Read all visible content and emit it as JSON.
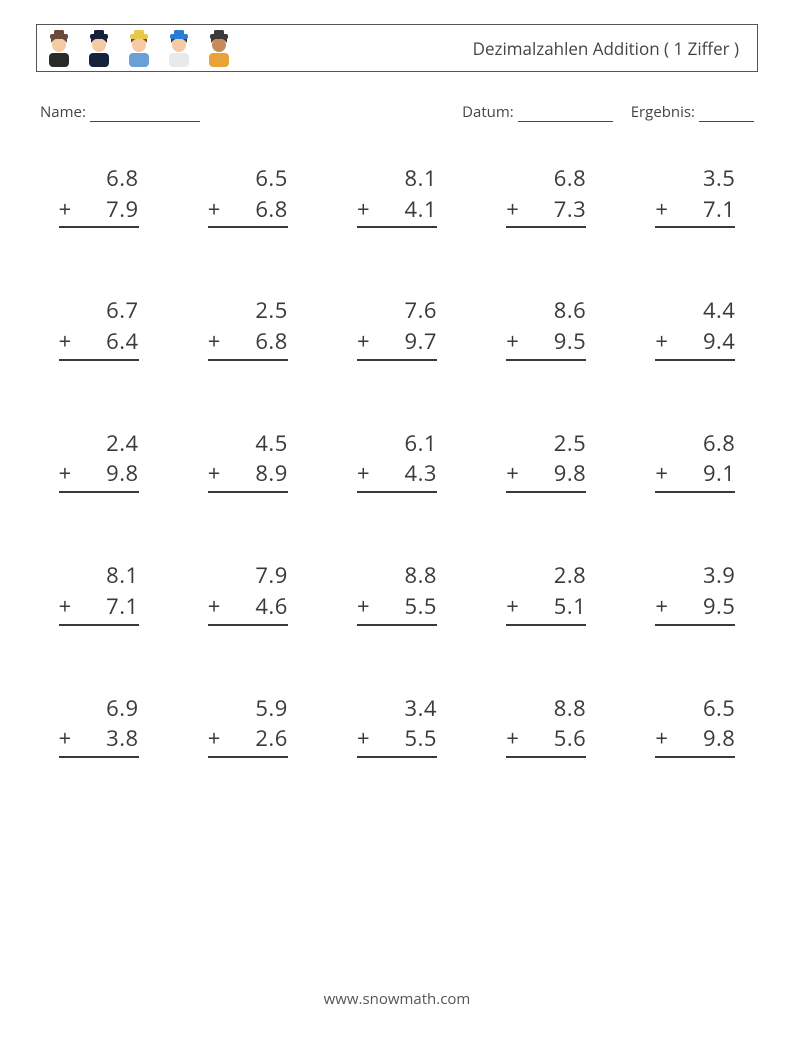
{
  "header": {
    "title": "Dezimalzahlen Addition ( 1 Ziffer )",
    "icon_colors": [
      {
        "hat": "#6a4a3a",
        "hair": "#6a4a3a",
        "shirt": "#2a2a2a",
        "skin": "#f4c9a4"
      },
      {
        "hat": "#14233b",
        "hair": "#14233b",
        "shirt": "#14233b",
        "skin": "#f4c9a4"
      },
      {
        "hat": "#e7c84a",
        "hair": "#7a4a2a",
        "shirt": "#6aa0d8",
        "skin": "#f4c9a4"
      },
      {
        "hat": "#2a7bd1",
        "hair": "#3a3a3a",
        "shirt": "#e9e9e9",
        "skin": "#f4c9a4"
      },
      {
        "hat": "#3a3a3a",
        "hair": "#3a3a3a",
        "shirt": "#e8a23a",
        "skin": "#c88a5a"
      }
    ]
  },
  "meta": {
    "name_label": "Name:",
    "date_label": "Datum:",
    "result_label": "Ergebnis:"
  },
  "worksheet": {
    "type": "arithmetic-worksheet",
    "operator": "+",
    "columns": 5,
    "rows": 5,
    "font_size_pt": 22,
    "text_color": "#3a3a3a",
    "rule_color": "#3a3a3a",
    "background_color": "#ffffff",
    "problems": [
      {
        "a": "6.8",
        "b": "7.9"
      },
      {
        "a": "6.5",
        "b": "6.8"
      },
      {
        "a": "8.1",
        "b": "4.1"
      },
      {
        "a": "6.8",
        "b": "7.3"
      },
      {
        "a": "3.5",
        "b": "7.1"
      },
      {
        "a": "6.7",
        "b": "6.4"
      },
      {
        "a": "2.5",
        "b": "6.8"
      },
      {
        "a": "7.6",
        "b": "9.7"
      },
      {
        "a": "8.6",
        "b": "9.5"
      },
      {
        "a": "4.4",
        "b": "9.4"
      },
      {
        "a": "2.4",
        "b": "9.8"
      },
      {
        "a": "4.5",
        "b": "8.9"
      },
      {
        "a": "6.1",
        "b": "4.3"
      },
      {
        "a": "2.5",
        "b": "9.8"
      },
      {
        "a": "6.8",
        "b": "9.1"
      },
      {
        "a": "8.1",
        "b": "7.1"
      },
      {
        "a": "7.9",
        "b": "4.6"
      },
      {
        "a": "8.8",
        "b": "5.5"
      },
      {
        "a": "2.8",
        "b": "5.1"
      },
      {
        "a": "3.9",
        "b": "9.5"
      },
      {
        "a": "6.9",
        "b": "3.8"
      },
      {
        "a": "5.9",
        "b": "2.6"
      },
      {
        "a": "3.4",
        "b": "5.5"
      },
      {
        "a": "8.8",
        "b": "5.6"
      },
      {
        "a": "6.5",
        "b": "9.8"
      }
    ]
  },
  "footer": {
    "url_prefix": "www.",
    "url_mid": "snow",
    "url_suffix": "math",
    "url_end": ".com"
  }
}
